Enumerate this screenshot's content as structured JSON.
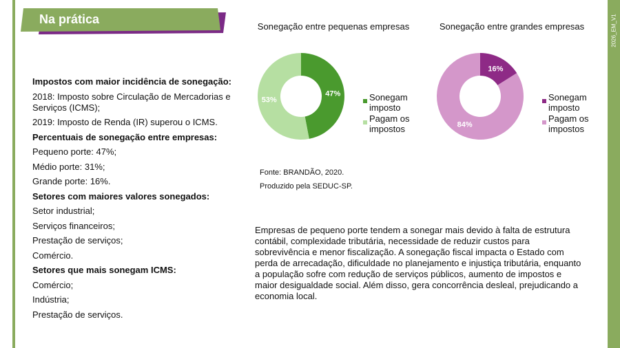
{
  "header": {
    "title": "Na prática",
    "side_label": "2026_EM_V1"
  },
  "left_text": [
    {
      "text": "Impostos com maior incidência de sonegação:",
      "bold": true
    },
    {
      "text": "2018: Imposto sobre Circulação de Mercadorias e Serviços (ICMS);",
      "bold": false
    },
    {
      "text": "2019: Imposto de Renda (IR) superou o ICMS.",
      "bold": false
    },
    {
      "text": "Percentuais de sonegação entre empresas:",
      "bold": true
    },
    {
      "text": "Pequeno porte: 47%;",
      "bold": false
    },
    {
      "text": "Médio porte: 31%;",
      "bold": false
    },
    {
      "text": "Grande porte: 16%.",
      "bold": false
    },
    {
      "text": "Setores com maiores valores sonegados:",
      "bold": true
    },
    {
      "text": "Setor industrial;",
      "bold": false
    },
    {
      "text": "Serviços financeiros;",
      "bold": false
    },
    {
      "text": "Prestação de serviços;",
      "bold": false
    },
    {
      "text": "Comércio.",
      "bold": false
    },
    {
      "text": "Setores que mais sonegam ICMS:",
      "bold": true
    },
    {
      "text": "Comércio;",
      "bold": false
    },
    {
      "text": "Indústria;",
      "bold": false
    },
    {
      "text": "Prestação de serviços.",
      "bold": false
    }
  ],
  "chart_data": [
    {
      "type": "donut",
      "title": "Sonegação entre pequenas empresas",
      "categories": [
        "Sonegam imposto",
        "Pagam os impostos"
      ],
      "values": [
        47,
        53
      ],
      "value_labels": [
        "47%",
        "53%"
      ],
      "colors": [
        "#4a9a2e",
        "#b6dfa2"
      ]
    },
    {
      "type": "donut",
      "title": "Sonegação entre grandes empresas",
      "categories": [
        "Sonegam imposto",
        "Pagam os impostos"
      ],
      "values": [
        16,
        84
      ],
      "value_labels": [
        "16%",
        "84%"
      ],
      "colors": [
        "#8e2a86",
        "#d497ca"
      ]
    }
  ],
  "source": [
    "Fonte: BRANDÃO, 2020.",
    "Produzido pela SEDUC-SP."
  ],
  "paragraph": "Empresas de pequeno porte tendem a sonegar mais devido à falta de estrutura contábil, complexidade tributária, necessidade de reduzir custos para sobrevivência e menor fiscalização. A sonegação fiscal impacta o Estado com perda de arrecadação, dificuldade no planejamento e injustiça tributária, enquanto a população sofre com redução de serviços públicos, aumento de impostos e maior desigualdade social. Além disso, gera concorrência desleal, prejudicando a economia local."
}
